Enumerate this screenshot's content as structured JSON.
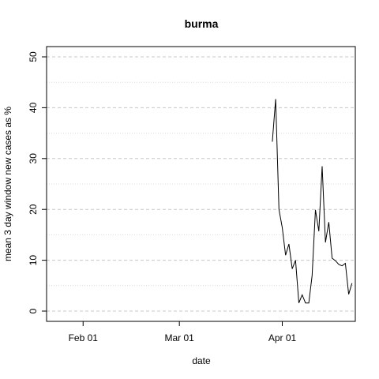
{
  "chart_data": {
    "type": "line",
    "title": "burma",
    "xlabel": "date",
    "ylabel": "mean  3  day window new cases as %",
    "x_range": [
      "2020-01-21",
      "2020-04-23"
    ],
    "ylim": [
      0,
      50
    ],
    "x_ticks": [
      {
        "date": "2020-02-01",
        "label": "Feb 01"
      },
      {
        "date": "2020-03-01",
        "label": "Mar 01"
      },
      {
        "date": "2020-04-01",
        "label": "Apr 01"
      }
    ],
    "y_ticks": [
      0,
      10,
      20,
      30,
      40,
      50
    ],
    "grid": {
      "major_y": [
        0,
        10,
        20,
        30,
        40,
        50
      ],
      "minor_y": [
        5,
        15,
        25,
        35,
        45
      ],
      "style": "dashed"
    },
    "series": [
      {
        "color": "#000000",
        "x": [
          "2020-03-29",
          "2020-03-30",
          "2020-03-31",
          "2020-04-01",
          "2020-04-02",
          "2020-04-03",
          "2020-04-04",
          "2020-04-05",
          "2020-04-06",
          "2020-04-07",
          "2020-04-08",
          "2020-04-09",
          "2020-04-10",
          "2020-04-11",
          "2020-04-12",
          "2020-04-13",
          "2020-04-14",
          "2020-04-15",
          "2020-04-16",
          "2020-04-17",
          "2020-04-18",
          "2020-04-19",
          "2020-04-20",
          "2020-04-21",
          "2020-04-22"
        ],
        "y": [
          33.3,
          41.7,
          20.0,
          16.4,
          11.0,
          13.2,
          8.3,
          10.0,
          1.6,
          3.2,
          1.6,
          1.6,
          7.0,
          19.9,
          15.7,
          28.5,
          13.5,
          17.5,
          10.4,
          9.9,
          9.2,
          8.9,
          9.4,
          3.3,
          5.5
        ]
      }
    ]
  }
}
